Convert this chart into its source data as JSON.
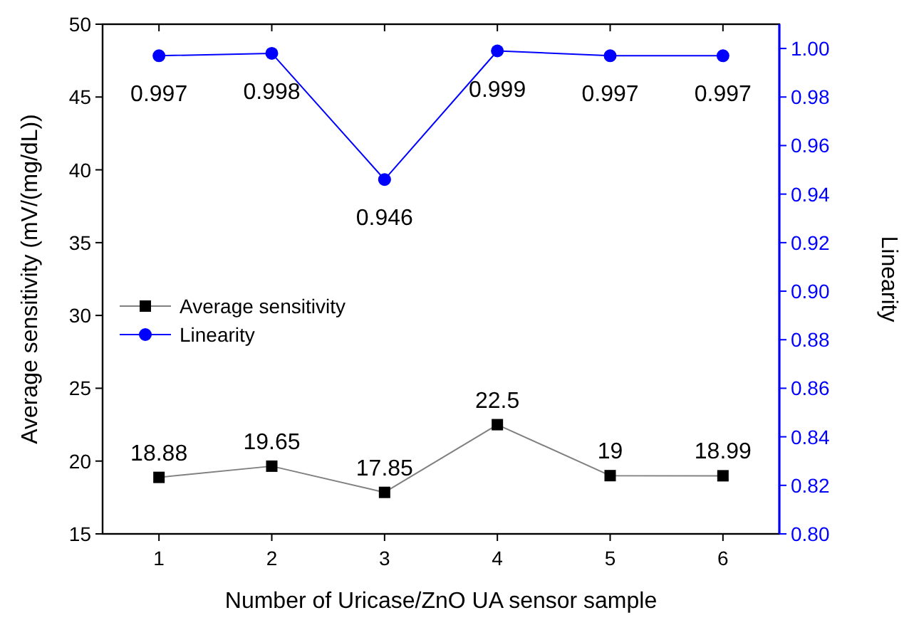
{
  "chart_data": {
    "type": "line",
    "xlabel": "Number of Uricase/ZnO UA sensor sample",
    "ylabel": "Average sensitivity (mV/(mg/dL))",
    "y2label": "Linearity",
    "x": [
      1,
      2,
      3,
      4,
      5,
      6
    ],
    "xlim": [
      0.5,
      6.5
    ],
    "xticks": [
      1,
      2,
      3,
      4,
      5,
      6
    ],
    "ylim": [
      15,
      50
    ],
    "yticks": [
      15,
      20,
      25,
      30,
      35,
      40,
      45,
      50
    ],
    "y2lim": [
      0.8,
      1.01
    ],
    "y2ticks": [
      {
        "value": 0.8,
        "label": "0.80"
      },
      {
        "value": 0.82,
        "label": "0.82"
      },
      {
        "value": 0.84,
        "label": "0.84"
      },
      {
        "value": 0.86,
        "label": "0.86"
      },
      {
        "value": 0.88,
        "label": "0.88"
      },
      {
        "value": 0.9,
        "label": "0.90"
      },
      {
        "value": 0.92,
        "label": "0.92"
      },
      {
        "value": 0.94,
        "label": "0.94"
      },
      {
        "value": 0.96,
        "label": "0.96"
      },
      {
        "value": 0.98,
        "label": "0.98"
      },
      {
        "value": 1.0,
        "label": "1.00"
      }
    ],
    "series": [
      {
        "name": "Average sensitivity",
        "color": "#000000",
        "marker": "square",
        "values": [
          18.88,
          19.65,
          17.85,
          22.5,
          19,
          18.99
        ]
      },
      {
        "name": "Linearity",
        "color": "#0000ff",
        "marker": "circle",
        "axis": "y2",
        "values": [
          0.997,
          0.998,
          0.946,
          0.999,
          0.997,
          0.997
        ]
      }
    ],
    "data_labels": true,
    "legend": "left",
    "grid": false
  }
}
